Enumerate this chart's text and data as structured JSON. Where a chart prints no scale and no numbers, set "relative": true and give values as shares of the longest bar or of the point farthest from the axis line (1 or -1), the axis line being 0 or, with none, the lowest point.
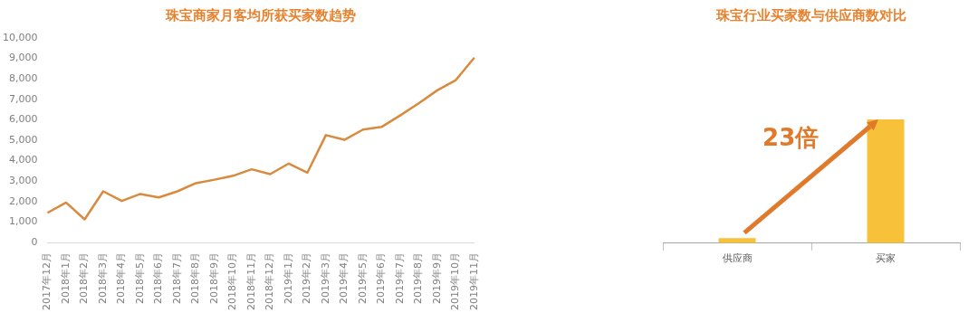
{
  "chart_data": [
    {
      "type": "line",
      "title": "珠宝商家月客均所获买家数趋势",
      "categories": [
        "2017年12月",
        "2018年1月",
        "2018年2月",
        "2018年3月",
        "2018年4月",
        "2018年5月",
        "2018年6月",
        "2018年7月",
        "2018年8月",
        "2018年9月",
        "2018年10月",
        "2018年11月",
        "2018年12月",
        "2019年1月",
        "2019年2月",
        "2019年3月",
        "2019年4月",
        "2019年5月",
        "2019年6月",
        "2019年7月",
        "2019年8月",
        "2019年9月",
        "2019年10月",
        "2019年11月"
      ],
      "values": [
        1450,
        1950,
        1130,
        2500,
        2030,
        2370,
        2200,
        2500,
        2900,
        3070,
        3260,
        3580,
        3340,
        3860,
        3410,
        5250,
        5020,
        5520,
        5650,
        6210,
        6800,
        7440,
        7940,
        9040
      ],
      "color": "#d98a3e",
      "marker": "none",
      "ylim": [
        0,
        10000
      ],
      "yticks": [
        0,
        {
          "value": 1000,
          "label": "1,000"
        },
        {
          "value": 2000,
          "label": "2,000"
        },
        {
          "value": 3000,
          "label": "3,000"
        },
        {
          "value": 4000,
          "label": "4,000"
        },
        {
          "value": 5000,
          "label": "5,000"
        },
        {
          "value": 6000,
          "label": "6,000"
        },
        {
          "value": 7000,
          "label": "7,000"
        },
        {
          "value": 8000,
          "label": "8,000"
        },
        {
          "value": 9000,
          "label": "9,000"
        },
        {
          "value": 10000,
          "label": "10,000"
        }
      ]
    },
    {
      "type": "bar",
      "title": "珠宝行业买家数与供应商数对比",
      "categories": [
        "供应商",
        "买家"
      ],
      "values": [
        0.04,
        1
      ],
      "relative": true,
      "color": "#f8c13a",
      "annotations": [
        "23倍"
      ]
    }
  ]
}
